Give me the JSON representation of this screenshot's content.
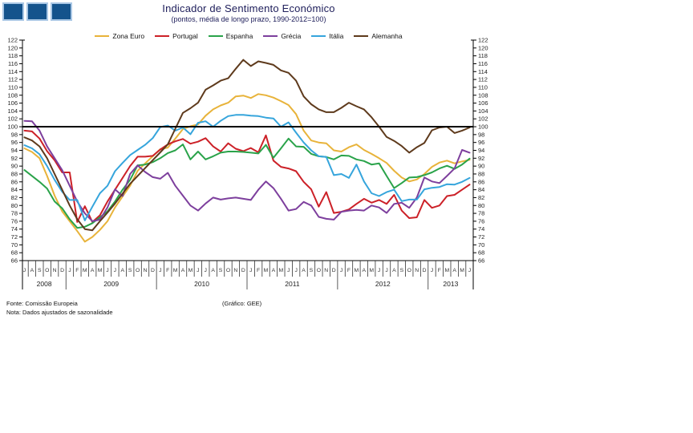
{
  "logo": {
    "square_count": 3,
    "fill_color": "#14538C",
    "border_color": "#A9C7E5"
  },
  "chart_data": {
    "type": "line",
    "title": "Indicador de Sentimento Económico",
    "subtitle": "(pontos, média de longo prazo, 1990-2012=100)",
    "ylim": [
      66,
      122
    ],
    "ytick_step": 2,
    "reference_line": 100,
    "grid": false,
    "legend_position": "top",
    "x_range": "Jul 2008 - Jun 2013 (monthly)",
    "months": [
      "J",
      "A",
      "S",
      "O",
      "N",
      "D",
      "J",
      "F",
      "M",
      "A",
      "M",
      "J",
      "J",
      "A",
      "S",
      "O",
      "N",
      "D",
      "J",
      "F",
      "M",
      "A",
      "M",
      "J",
      "J",
      "A",
      "S",
      "O",
      "N",
      "D",
      "J",
      "F",
      "M",
      "A",
      "M",
      "J",
      "J",
      "A",
      "S",
      "O",
      "N",
      "D",
      "J",
      "F",
      "M",
      "A",
      "M",
      "J",
      "J",
      "A",
      "S",
      "O",
      "N",
      "D",
      "J",
      "F",
      "M",
      "A",
      "M",
      "J"
    ],
    "years": [
      {
        "label": "2008",
        "start": 0,
        "count": 6
      },
      {
        "label": "2009",
        "start": 6,
        "count": 12
      },
      {
        "label": "2010",
        "start": 18,
        "count": 12
      },
      {
        "label": "2011",
        "start": 30,
        "count": 12
      },
      {
        "label": "2012",
        "start": 42,
        "count": 12
      },
      {
        "label": "2013",
        "start": 54,
        "count": 6
      }
    ],
    "series": [
      {
        "id": "zona-euro",
        "name": "Zona Euro",
        "color": "#E8B33A",
        "values": [
          94.5,
          93.6,
          92.0,
          87.5,
          82.5,
          78.5,
          76.0,
          73.5,
          70.8,
          72.0,
          73.8,
          76.0,
          79.5,
          82.3,
          85.0,
          88.8,
          90.7,
          92.5,
          94.3,
          94.7,
          97.0,
          99.4,
          100.1,
          100.6,
          102.8,
          104.4,
          105.4,
          106.1,
          107.7,
          107.9,
          107.3,
          108.3,
          108.0,
          107.4,
          106.5,
          105.5,
          103.2,
          99.0,
          96.5,
          96.0,
          95.8,
          94.0,
          93.7,
          94.8,
          95.5,
          94.1,
          93.1,
          92.0,
          90.8,
          88.8,
          87.1,
          86.1,
          86.6,
          88.0,
          89.8,
          90.9,
          91.4,
          90.7,
          91.2,
          91.6
        ]
      },
      {
        "id": "portugal",
        "name": "Portugal",
        "color": "#CC2128",
        "values": [
          99.0,
          98.8,
          97.0,
          93.8,
          91.5,
          88.4,
          88.4,
          75.8,
          79.8,
          75.8,
          77.5,
          81.0,
          84.0,
          87.0,
          90.0,
          92.4,
          92.4,
          92.6,
          94.2,
          95.5,
          96.3,
          96.9,
          95.7,
          96.2,
          97.1,
          95.0,
          93.7,
          95.8,
          94.4,
          93.8,
          94.6,
          93.5,
          97.8,
          91.4,
          89.8,
          89.4,
          88.7,
          86.0,
          84.1,
          79.7,
          83.4,
          78.1,
          78.4,
          79.0,
          80.4,
          81.7,
          80.7,
          81.4,
          80.4,
          82.7,
          78.7,
          76.8,
          77.0,
          81.4,
          79.4,
          80.0,
          82.4,
          82.7,
          84.0,
          85.3
        ]
      },
      {
        "id": "espanha",
        "name": "Espanha",
        "color": "#2AA34A",
        "values": [
          89.0,
          87.5,
          86.0,
          84.3,
          81.0,
          79.3,
          76.5,
          74.3,
          74.6,
          75.5,
          77.0,
          78.5,
          81.0,
          84.0,
          86.5,
          90.2,
          90.4,
          91.0,
          92.0,
          93.3,
          94.0,
          95.5,
          91.7,
          93.7,
          91.7,
          92.5,
          93.4,
          93.7,
          93.7,
          93.6,
          93.4,
          93.2,
          95.4,
          92.1,
          94.5,
          97.0,
          95.0,
          94.9,
          93.1,
          92.5,
          92.3,
          91.7,
          92.7,
          92.6,
          91.7,
          91.3,
          90.4,
          90.7,
          87.5,
          84.4,
          85.7,
          87.1,
          87.2,
          87.7,
          88.4,
          89.4,
          90.1,
          89.3,
          90.4,
          91.9
        ]
      },
      {
        "id": "grecia",
        "name": "Grécia",
        "color": "#7D3F9D",
        "values": [
          101.5,
          101.4,
          99.0,
          95.0,
          92.0,
          89.0,
          85.0,
          81.0,
          78.0,
          76.0,
          76.4,
          79.5,
          84.1,
          82.4,
          88.0,
          90.2,
          88.5,
          87.2,
          86.8,
          88.3,
          85.0,
          82.5,
          80.0,
          78.7,
          80.5,
          82.0,
          81.5,
          81.8,
          82.0,
          81.7,
          81.4,
          84.0,
          86.1,
          84.4,
          81.7,
          78.7,
          79.1,
          80.9,
          80.0,
          77.1,
          76.6,
          76.4,
          78.4,
          78.7,
          78.9,
          78.7,
          80.0,
          79.5,
          78.1,
          80.4,
          80.7,
          79.4,
          82.0,
          87.1,
          86.1,
          85.7,
          87.5,
          89.4,
          94.1,
          93.4
        ]
      },
      {
        "id": "italia",
        "name": "Itália",
        "color": "#36A5DC",
        "values": [
          95.3,
          94.5,
          93.0,
          90.0,
          86.5,
          83.5,
          81.4,
          81.4,
          76.2,
          79.7,
          83.1,
          85.0,
          88.7,
          90.8,
          92.8,
          94.1,
          95.4,
          97.1,
          99.9,
          100.3,
          99.0,
          99.8,
          98.1,
          101.0,
          101.4,
          100.0,
          101.5,
          102.7,
          103.0,
          103.0,
          102.8,
          102.7,
          102.3,
          102.1,
          100.0,
          101.1,
          98.5,
          96.0,
          94.0,
          92.5,
          92.3,
          87.7,
          88.0,
          87.0,
          90.4,
          86.1,
          83.1,
          82.4,
          83.4,
          84.0,
          81.1,
          81.5,
          81.5,
          84.1,
          84.5,
          84.7,
          85.4,
          85.3,
          86.0,
          87.0
        ]
      },
      {
        "id": "alemanha",
        "name": "Alemanha",
        "color": "#5E3A1C",
        "values": [
          97.3,
          96.5,
          95.0,
          92.0,
          88.0,
          84.0,
          80.0,
          76.5,
          74.0,
          73.7,
          76.0,
          78.2,
          80.5,
          83.0,
          85.5,
          87.5,
          89.5,
          91.5,
          93.5,
          95.5,
          99.5,
          103.5,
          104.7,
          106.1,
          109.4,
          110.5,
          111.7,
          112.3,
          114.7,
          117.0,
          115.4,
          116.6,
          116.2,
          115.7,
          114.3,
          113.7,
          111.7,
          107.7,
          105.7,
          104.4,
          103.7,
          103.7,
          104.8,
          106.1,
          105.2,
          104.4,
          102.4,
          100.0,
          97.4,
          96.4,
          95.1,
          93.4,
          94.8,
          95.9,
          99.1,
          99.8,
          100.0,
          98.4,
          99.0,
          99.8
        ]
      }
    ]
  },
  "footer": {
    "fonte": "Fonte: Comissão Europeia",
    "grafico": "(Gráfico: GEE)",
    "nota": "Nota: Dados ajustados de sazonalidade"
  }
}
